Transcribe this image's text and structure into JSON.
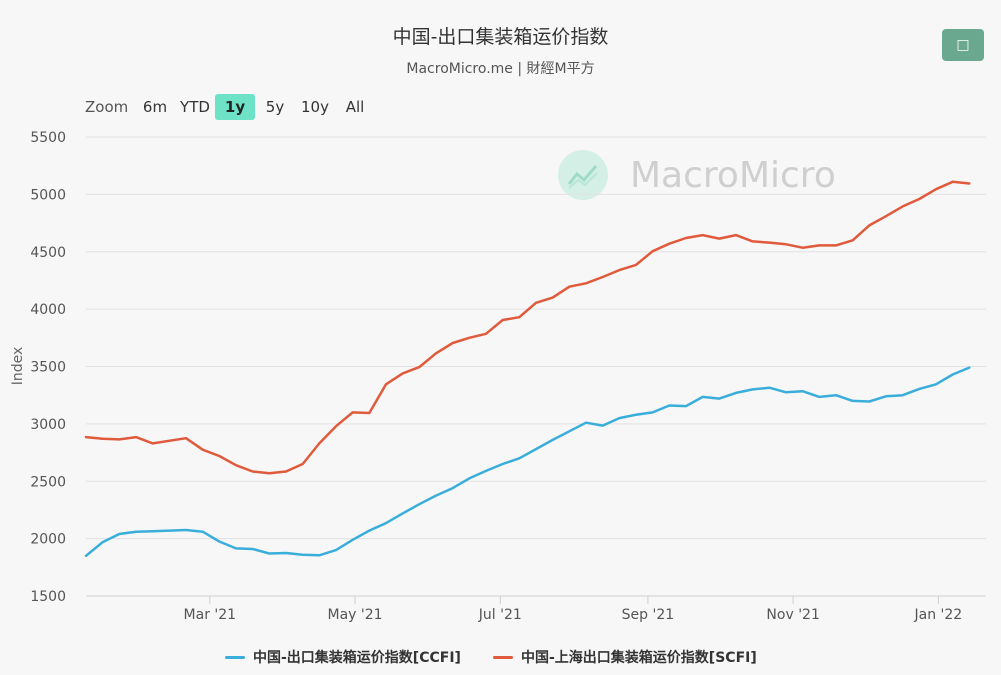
{
  "header": {
    "title": "中国-出口集装箱运价指数",
    "subtitle": "MacroMicro.me | 財經M平方",
    "menu_icon": "menu-icon"
  },
  "zoom": {
    "label": "Zoom",
    "options": [
      "6m",
      "YTD",
      "1y",
      "5y",
      "10y",
      "All"
    ],
    "active": "1y"
  },
  "watermark": {
    "text": "MacroMicro"
  },
  "chart_data": {
    "type": "line",
    "ylabel": "Index",
    "ylim": [
      1500,
      5500
    ],
    "yticks": [
      1500,
      2000,
      2500,
      3000,
      3500,
      4000,
      4500,
      5000,
      5500
    ],
    "xticks": [
      {
        "label": "Mar '21",
        "date": "2021-03-01"
      },
      {
        "label": "May '21",
        "date": "2021-05-01"
      },
      {
        "label": "Jul '21",
        "date": "2021-07-01"
      },
      {
        "label": "Sep '21",
        "date": "2021-09-01"
      },
      {
        "label": "Nov '21",
        "date": "2021-11-01"
      },
      {
        "label": "Jan '22",
        "date": "2022-01-01"
      }
    ],
    "xlim": [
      "2021-01-08",
      "2022-01-21"
    ],
    "grid": true,
    "legend_position": "bottom-center",
    "series": [
      {
        "name": "中国-出口集装箱运价指数[CCFI]",
        "color": "#3aaedb",
        "points": [
          [
            "2021-01-08",
            1850
          ],
          [
            "2021-01-15",
            1970
          ],
          [
            "2021-01-22",
            2040
          ],
          [
            "2021-01-29",
            2060
          ],
          [
            "2021-02-05",
            2065
          ],
          [
            "2021-02-19",
            2075
          ],
          [
            "2021-02-26",
            2060
          ],
          [
            "2021-03-05",
            1975
          ],
          [
            "2021-03-12",
            1915
          ],
          [
            "2021-03-19",
            1910
          ],
          [
            "2021-03-26",
            1870
          ],
          [
            "2021-04-02",
            1875
          ],
          [
            "2021-04-09",
            1860
          ],
          [
            "2021-04-16",
            1855
          ],
          [
            "2021-04-23",
            1900
          ],
          [
            "2021-04-30",
            1990
          ],
          [
            "2021-05-07",
            2070
          ],
          [
            "2021-05-14",
            2135
          ],
          [
            "2021-05-21",
            2220
          ],
          [
            "2021-05-28",
            2300
          ],
          [
            "2021-06-04",
            2375
          ],
          [
            "2021-06-11",
            2440
          ],
          [
            "2021-06-18",
            2525
          ],
          [
            "2021-06-25",
            2590
          ],
          [
            "2021-07-02",
            2650
          ],
          [
            "2021-07-09",
            2700
          ],
          [
            "2021-07-16",
            2780
          ],
          [
            "2021-07-23",
            2860
          ],
          [
            "2021-07-30",
            2935
          ],
          [
            "2021-08-06",
            3010
          ],
          [
            "2021-08-13",
            2985
          ],
          [
            "2021-08-20",
            3050
          ],
          [
            "2021-08-27",
            3080
          ],
          [
            "2021-09-03",
            3100
          ],
          [
            "2021-09-10",
            3160
          ],
          [
            "2021-09-17",
            3155
          ],
          [
            "2021-09-24",
            3235
          ],
          [
            "2021-10-01",
            3220
          ],
          [
            "2021-10-08",
            3270
          ],
          [
            "2021-10-15",
            3300
          ],
          [
            "2021-10-22",
            3315
          ],
          [
            "2021-10-29",
            3275
          ],
          [
            "2021-11-05",
            3285
          ],
          [
            "2021-11-12",
            3235
          ],
          [
            "2021-11-19",
            3250
          ],
          [
            "2021-11-26",
            3200
          ],
          [
            "2021-12-03",
            3195
          ],
          [
            "2021-12-10",
            3240
          ],
          [
            "2021-12-17",
            3250
          ],
          [
            "2021-12-24",
            3305
          ],
          [
            "2021-12-31",
            3345
          ],
          [
            "2022-01-07",
            3430
          ],
          [
            "2022-01-14",
            3490
          ]
        ]
      },
      {
        "name": "中国-上海出口集装箱运价指数[SCFI]",
        "color": "#e05a3c",
        "points": [
          [
            "2021-01-08",
            2885
          ],
          [
            "2021-01-15",
            2870
          ],
          [
            "2021-01-22",
            2865
          ],
          [
            "2021-01-29",
            2885
          ],
          [
            "2021-02-05",
            2830
          ],
          [
            "2021-02-19",
            2875
          ],
          [
            "2021-02-26",
            2775
          ],
          [
            "2021-03-05",
            2720
          ],
          [
            "2021-03-12",
            2640
          ],
          [
            "2021-03-19",
            2585
          ],
          [
            "2021-03-26",
            2570
          ],
          [
            "2021-04-02",
            2585
          ],
          [
            "2021-04-09",
            2650
          ],
          [
            "2021-04-16",
            2830
          ],
          [
            "2021-04-23",
            2980
          ],
          [
            "2021-04-30",
            3100
          ],
          [
            "2021-05-07",
            3095
          ],
          [
            "2021-05-14",
            3345
          ],
          [
            "2021-05-21",
            3440
          ],
          [
            "2021-05-28",
            3495
          ],
          [
            "2021-06-04",
            3615
          ],
          [
            "2021-06-11",
            3705
          ],
          [
            "2021-06-18",
            3750
          ],
          [
            "2021-06-25",
            3785
          ],
          [
            "2021-07-02",
            3905
          ],
          [
            "2021-07-09",
            3930
          ],
          [
            "2021-07-16",
            4055
          ],
          [
            "2021-07-23",
            4100
          ],
          [
            "2021-07-30",
            4195
          ],
          [
            "2021-08-06",
            4225
          ],
          [
            "2021-08-13",
            4280
          ],
          [
            "2021-08-20",
            4340
          ],
          [
            "2021-08-27",
            4385
          ],
          [
            "2021-09-03",
            4505
          ],
          [
            "2021-09-10",
            4570
          ],
          [
            "2021-09-17",
            4620
          ],
          [
            "2021-09-24",
            4645
          ],
          [
            "2021-10-01",
            4615
          ],
          [
            "2021-10-08",
            4645
          ],
          [
            "2021-10-15",
            4590
          ],
          [
            "2021-10-22",
            4580
          ],
          [
            "2021-10-29",
            4565
          ],
          [
            "2021-11-05",
            4535
          ],
          [
            "2021-11-12",
            4555
          ],
          [
            "2021-11-19",
            4555
          ],
          [
            "2021-11-26",
            4600
          ],
          [
            "2021-12-03",
            4730
          ],
          [
            "2021-12-10",
            4810
          ],
          [
            "2021-12-17",
            4895
          ],
          [
            "2021-12-24",
            4960
          ],
          [
            "2021-12-31",
            5045
          ],
          [
            "2022-01-07",
            5110
          ],
          [
            "2022-01-14",
            5095
          ]
        ]
      }
    ]
  }
}
